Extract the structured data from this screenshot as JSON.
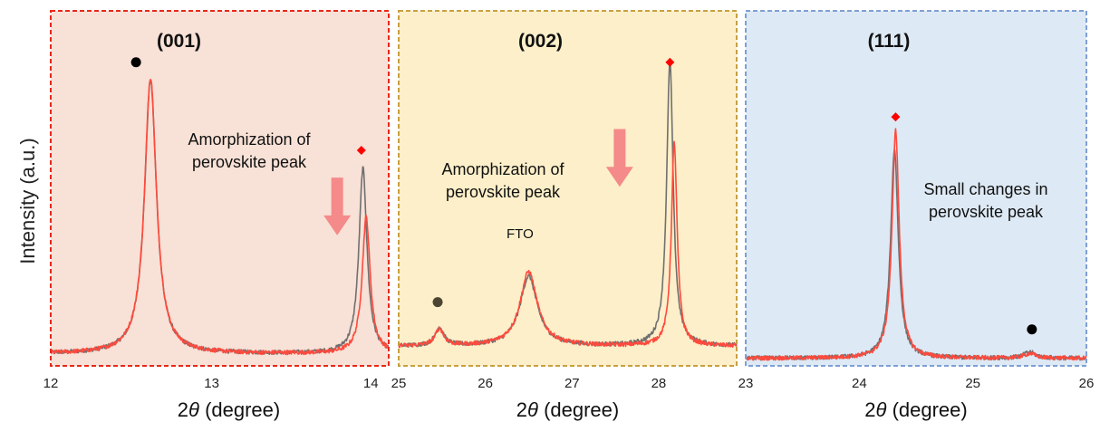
{
  "y_axis_label": "Intensity (a.u.)",
  "x_axis_label": "2θ (degree)",
  "colors": {
    "series_a": "#707070",
    "series_b": "#ff4a3d",
    "arrow": "#f48a8a",
    "marker_diamond": "#ff0000",
    "marker_circle": "#000000",
    "marker_circle_fto": "#4d4533"
  },
  "chart_data": [
    {
      "type": "line",
      "title": "(001)",
      "xlim": [
        12,
        14.1
      ],
      "xticks": [
        12,
        13,
        14
      ],
      "xtick_labels": [
        "12",
        "13",
        "14"
      ],
      "ylim": [
        0,
        1.05
      ],
      "border_color": "#e8281a",
      "bg_color": "#f8e1d6",
      "annotation": [
        "Amorphization of",
        "perovskite peak"
      ],
      "arrow": {
        "x": 13.78,
        "y_from": 0.62,
        "y_to": 0.43,
        "direction": "down"
      },
      "markers": [
        {
          "shape": "circle",
          "x": 12.53,
          "y": 1.0,
          "color": "#000000"
        },
        {
          "shape": "diamond",
          "x": 13.93,
          "y": 0.71,
          "color": "#ff0000"
        }
      ],
      "series": [
        {
          "color": "#707070",
          "baseline": 0.04,
          "peaks": [
            {
              "c": 12.62,
              "h": 0.9,
              "w": 0.045
            },
            {
              "c": 13.94,
              "h": 0.61,
              "w": 0.03
            }
          ]
        },
        {
          "color": "#ff4a3d",
          "baseline": 0.04,
          "peaks": [
            {
              "c": 12.62,
              "h": 0.91,
              "w": 0.045
            },
            {
              "c": 13.96,
              "h": 0.45,
              "w": 0.03
            }
          ]
        }
      ]
    },
    {
      "type": "line",
      "title": "(002)",
      "xlim": [
        25,
        28.9
      ],
      "xticks": [
        25,
        26,
        27,
        28
      ],
      "xtick_labels": [
        "25",
        "26",
        "27",
        "28"
      ],
      "ylim": [
        0,
        1.05
      ],
      "border_color": "#c8a040",
      "bg_color": "#fcefc9",
      "annotation": [
        "Amorphization of",
        "perovskite peak"
      ],
      "fto_label": "FTO",
      "fto_label_pos": {
        "x": 26.4,
        "y": 0.42
      },
      "arrow": {
        "x": 27.55,
        "y_from": 0.78,
        "y_to": 0.59,
        "direction": "down"
      },
      "markers": [
        {
          "shape": "circle",
          "x": 25.45,
          "y": 0.21,
          "color": "#4d4533"
        },
        {
          "shape": "diamond",
          "x": 28.13,
          "y": 1.0,
          "color": "#ff0000"
        }
      ],
      "series": [
        {
          "color": "#707070",
          "baseline": 0.065,
          "peaks": [
            {
              "c": 25.47,
              "h": 0.06,
              "w": 0.06
            },
            {
              "c": 26.5,
              "h": 0.23,
              "w": 0.12
            },
            {
              "c": 28.13,
              "h": 0.94,
              "w": 0.045
            }
          ]
        },
        {
          "color": "#ff4a3d",
          "baseline": 0.065,
          "peaks": [
            {
              "c": 25.47,
              "h": 0.055,
              "w": 0.06
            },
            {
              "c": 26.5,
              "h": 0.245,
              "w": 0.12
            },
            {
              "c": 28.18,
              "h": 0.67,
              "w": 0.04
            }
          ]
        }
      ]
    },
    {
      "type": "line",
      "title": "(111)",
      "xlim": [
        23,
        26
      ],
      "xticks": [
        23,
        24,
        25,
        26
      ],
      "xtick_labels": [
        "23",
        "24",
        "25",
        "26"
      ],
      "ylim": [
        0,
        1.05
      ],
      "border_color": "#7f9fd4",
      "bg_color": "#dde9f4",
      "annotation": [
        "Small changes in",
        "perovskite peak"
      ],
      "markers": [
        {
          "shape": "diamond",
          "x": 24.32,
          "y": 0.82,
          "color": "#ff0000"
        },
        {
          "shape": "circle",
          "x": 25.52,
          "y": 0.12,
          "color": "#000000"
        }
      ],
      "series": [
        {
          "color": "#707070",
          "baseline": 0.025,
          "peaks": [
            {
              "c": 24.31,
              "h": 0.69,
              "w": 0.04
            },
            {
              "c": 25.5,
              "h": 0.02,
              "w": 0.06
            }
          ]
        },
        {
          "color": "#ff4a3d",
          "baseline": 0.025,
          "peaks": [
            {
              "c": 24.32,
              "h": 0.75,
              "w": 0.038
            },
            {
              "c": 25.5,
              "h": 0.015,
              "w": 0.06
            }
          ]
        }
      ]
    }
  ]
}
